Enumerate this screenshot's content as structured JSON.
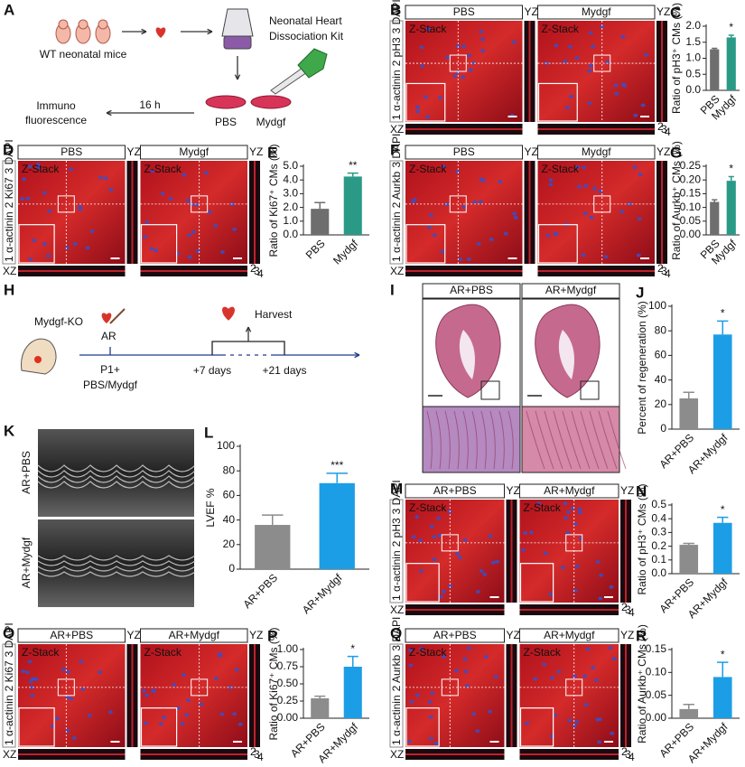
{
  "panels": {
    "A": {
      "letter": "A",
      "mice": "WT neonatal mice",
      "kit": [
        "Neonatal Heart",
        "Dissociation Kit"
      ],
      "time": "16 h",
      "readout": [
        "Immuno",
        "fluorescence"
      ],
      "dishes": [
        "PBS",
        "Mydgf"
      ]
    },
    "B": {
      "letter": "B",
      "conditions": [
        "PBS",
        "Mydgf"
      ],
      "stains": [
        "1 α-actinin",
        "2 pH3",
        "3 DAPI"
      ],
      "zstack": "Z-Stack",
      "yz": "YZ",
      "xz": "XZ",
      "corner": [
        "2",
        "3",
        "4"
      ]
    },
    "D": {
      "letter": "D",
      "conditions": [
        "PBS",
        "Mydgf"
      ],
      "stains": [
        "1 α-actinin",
        "2 Ki67",
        "3 DAPI"
      ],
      "zstack": "Z-Stack",
      "yz": "YZ",
      "xz": "XZ",
      "corner": [
        "2",
        "3",
        "4"
      ]
    },
    "F": {
      "letter": "F",
      "conditions": [
        "PBS",
        "Mydgf"
      ],
      "stains": [
        "1 α-actinin",
        "2 Aurkb",
        "3 DAPI"
      ],
      "zstack": "Z-Stack",
      "yz": "YZ",
      "xz": "XZ",
      "corner": [
        "2",
        "3",
        "4"
      ]
    },
    "H": {
      "letter": "H",
      "model": "Mydgf-KO",
      "surgery": "AR",
      "treatment": [
        "P1+",
        "PBS/Mydgf"
      ],
      "harvest": "Harvest",
      "times": [
        "+7 days",
        "+21 days"
      ]
    },
    "I": {
      "letter": "I",
      "conditions": [
        "AR+PBS",
        "AR+Mydgf"
      ]
    },
    "K": {
      "letter": "K",
      "conditions": [
        "AR+PBS",
        "AR+Mydgf"
      ]
    },
    "M": {
      "letter": "M",
      "conditions": [
        "AR+PBS",
        "AR+Mydgf"
      ],
      "stains": [
        "1 α-actinin",
        "2 pH3",
        "3 DAPI"
      ],
      "zstack": "Z-Stack",
      "yz": "YZ",
      "xz": "XZ",
      "corner": [
        "2",
        "3",
        "4"
      ]
    },
    "O": {
      "letter": "O",
      "conditions": [
        "AR+PBS",
        "AR+Mydgf"
      ],
      "stains": [
        "1 α-actinin",
        "2 Ki67",
        "3 DAPI"
      ],
      "zstack": "Z-Stack",
      "yz": "YZ",
      "xz": "XZ",
      "corner": [
        "2",
        "3",
        "4"
      ]
    },
    "Q": {
      "letter": "Q",
      "conditions": [
        "AR+PBS",
        "AR+Mydgf"
      ],
      "stains": [
        "1 α-actinin",
        "2 Aurkb",
        "3 DAPI"
      ],
      "zstack": "Z-Stack",
      "yz": "YZ",
      "xz": "XZ",
      "corner": [
        "2",
        "3",
        "4"
      ]
    }
  },
  "chart_data": [
    {
      "type": "bar",
      "panel": "C",
      "y_label": "Ratio of pH3⁺ CMs (%)",
      "categories": [
        "PBS",
        "Mydgf"
      ],
      "values": [
        1.28,
        1.65
      ],
      "errors": [
        0.03,
        0.07
      ],
      "colors": [
        "#6e6e6e",
        "#2a9a86"
      ],
      "ylim": [
        0,
        2.0
      ],
      "yticks": [
        {
          "value": 0,
          "label": "0.0"
        },
        {
          "value": 0.5,
          "label": "0.5"
        },
        {
          "value": 1,
          "label": "1.0"
        },
        {
          "value": 1.5,
          "label": "1.5"
        },
        {
          "value": 2,
          "label": "2.0"
        }
      ],
      "significance": "*"
    },
    {
      "type": "bar",
      "panel": "E",
      "y_label": "Ratio of Ki67⁺ CMs (%)",
      "categories": [
        "PBS",
        "Mydgf"
      ],
      "values": [
        1.9,
        4.25
      ],
      "errors": [
        0.45,
        0.25
      ],
      "colors": [
        "#6e6e6e",
        "#2a9a86"
      ],
      "ylim": [
        0,
        5.0
      ],
      "yticks": [
        {
          "value": 0,
          "label": "0.0"
        },
        {
          "value": 1,
          "label": "1.0"
        },
        {
          "value": 2,
          "label": "2.0"
        },
        {
          "value": 3,
          "label": "3.0"
        },
        {
          "value": 4,
          "label": "4.0"
        },
        {
          "value": 5,
          "label": "5.0"
        }
      ],
      "significance": "**"
    },
    {
      "type": "bar",
      "panel": "G",
      "y_label": "Ratio of Aurkb⁺ CMs (%)",
      "categories": [
        "PBS",
        "Mydgf"
      ],
      "values": [
        0.12,
        0.197
      ],
      "errors": [
        0.008,
        0.015
      ],
      "colors": [
        "#6e6e6e",
        "#2a9a86"
      ],
      "ylim": [
        0,
        0.25
      ],
      "yticks": [
        {
          "value": 0,
          "label": "0.00"
        },
        {
          "value": 0.05,
          "label": "0.05"
        },
        {
          "value": 0.1,
          "label": "0.10"
        },
        {
          "value": 0.15,
          "label": "0.15"
        },
        {
          "value": 0.2,
          "label": "0.20"
        },
        {
          "value": 0.25,
          "label": "0.25"
        }
      ],
      "significance": "*"
    },
    {
      "type": "bar",
      "panel": "J",
      "y_label": "Percent of regeneration (%)",
      "categories": [
        "AR+PBS",
        "AR+Mydgf"
      ],
      "values": [
        25,
        77
      ],
      "errors": [
        5,
        11
      ],
      "colors": [
        "#8c8c8c",
        "#1c9ee6"
      ],
      "ylim": [
        0,
        100
      ],
      "yticks": [
        0,
        20,
        40,
        60,
        80,
        100
      ],
      "significance": "*"
    },
    {
      "type": "bar",
      "panel": "L",
      "y_label": "LVEF %",
      "categories": [
        "AR+PBS",
        "AR+Mydgf"
      ],
      "values": [
        36,
        70
      ],
      "errors": [
        8,
        8
      ],
      "colors": [
        "#8c8c8c",
        "#1c9ee6"
      ],
      "ylim": [
        0,
        100
      ],
      "yticks": [
        0,
        20,
        40,
        60,
        80,
        100
      ],
      "significance": "***"
    },
    {
      "type": "bar",
      "panel": "N",
      "y_label": "Ratio of pH3⁺ CMs (%)",
      "categories": [
        "AR+PBS",
        "AR+Mydgf"
      ],
      "values": [
        0.21,
        0.37
      ],
      "errors": [
        0.01,
        0.04
      ],
      "colors": [
        "#8c8c8c",
        "#1c9ee6"
      ],
      "ylim": [
        0,
        0.5
      ],
      "yticks": [
        {
          "value": 0,
          "label": "0.0"
        },
        0.1,
        0.2,
        0.3,
        0.4,
        0.5
      ],
      "significance": "*"
    },
    {
      "type": "bar",
      "panel": "P",
      "y_label": "Ratio of Ki67⁺ CMs (%)",
      "categories": [
        "AR+PBS",
        "AR+Mydgf"
      ],
      "values": [
        0.29,
        0.75
      ],
      "errors": [
        0.03,
        0.15
      ],
      "colors": [
        "#8c8c8c",
        "#1c9ee6"
      ],
      "ylim": [
        0,
        1.0
      ],
      "yticks": [
        {
          "value": 0,
          "label": "0.00"
        },
        0.25,
        {
          "value": 0.5,
          "label": "0.50"
        },
        0.75,
        {
          "value": 1,
          "label": "1.00"
        }
      ],
      "significance": "*"
    },
    {
      "type": "bar",
      "panel": "R",
      "y_label": "Ratio of Aurkb⁺ CMs (%)",
      "categories": [
        "AR+PBS",
        "AR+Mydgf"
      ],
      "values": [
        0.02,
        0.09
      ],
      "errors": [
        0.01,
        0.032
      ],
      "colors": [
        "#8c8c8c",
        "#1c9ee6"
      ],
      "ylim": [
        0,
        0.15
      ],
      "yticks": [
        {
          "value": 0,
          "label": "0.00"
        },
        0.05,
        {
          "value": 0.1,
          "label": "0.10"
        },
        0.15
      ],
      "significance": "*"
    }
  ]
}
